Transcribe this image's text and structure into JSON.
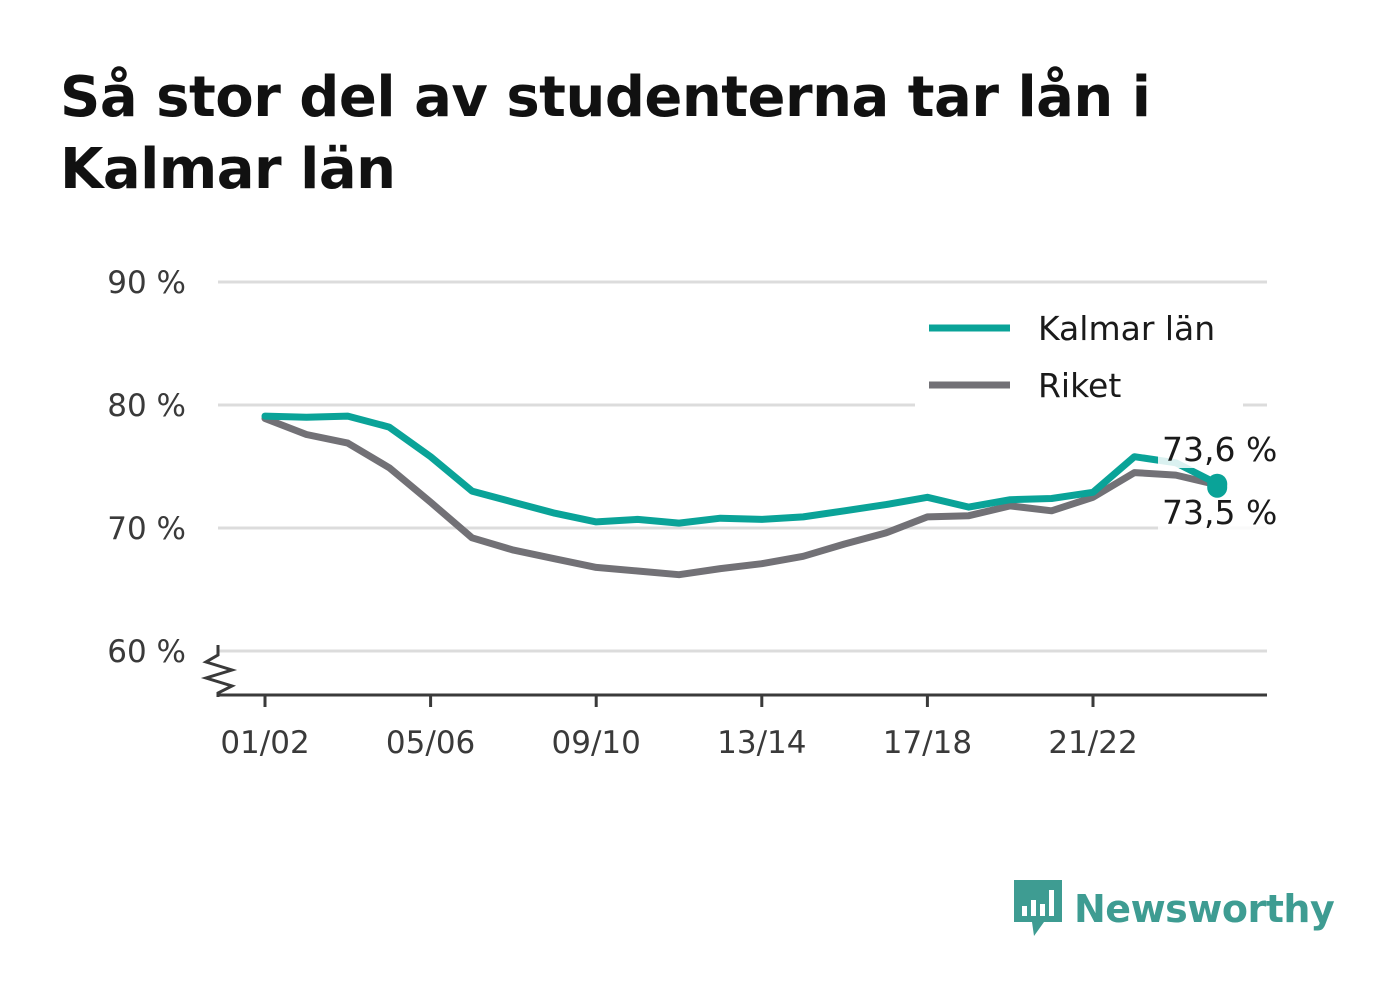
{
  "title": "Så stor del av studenterna tar lån i Kalmar län",
  "brand": {
    "name": "Newsworthy",
    "icon": "bar-chart-speech-bubble-icon",
    "color": "#3e9c92"
  },
  "colors": {
    "kalmar": "#0aa398",
    "riket": "#727176",
    "grid": "#dcdcdc",
    "axis": "#3a3a3a"
  },
  "chart_data": {
    "type": "line",
    "title": "Så stor del av studenterna tar lån i Kalmar län",
    "xlabel": "",
    "ylabel": "",
    "x": [
      "01/02",
      "02/03",
      "03/04",
      "04/05",
      "05/06",
      "06/07",
      "07/08",
      "08/09",
      "09/10",
      "10/11",
      "11/12",
      "12/13",
      "13/14",
      "14/15",
      "15/16",
      "16/17",
      "17/18",
      "18/19",
      "19/20",
      "20/21",
      "21/22",
      "22/23",
      "23/24",
      "24/25"
    ],
    "x_tick_labels": [
      "01/02",
      "05/06",
      "09/10",
      "13/14",
      "17/18",
      "21/22"
    ],
    "y_ticks": [
      60,
      70,
      80,
      90
    ],
    "y_tick_labels": [
      "60 %",
      "70 %",
      "80 %",
      "90 %"
    ],
    "ylim": [
      56.5,
      90
    ],
    "y_axis_break": true,
    "grid": true,
    "legend_position": "top-right",
    "series": [
      {
        "name": "Kalmar län",
        "color": "#0aa398",
        "values": [
          79.1,
          79.0,
          79.1,
          78.2,
          75.8,
          73.0,
          72.1,
          71.2,
          70.5,
          70.7,
          70.4,
          70.8,
          70.7,
          70.9,
          71.4,
          71.9,
          72.5,
          71.7,
          72.3,
          72.4,
          72.9,
          75.8,
          75.3,
          73.6
        ],
        "end_label": "73,6 %"
      },
      {
        "name": "Riket",
        "color": "#727176",
        "values": [
          78.9,
          77.6,
          76.9,
          74.9,
          72.1,
          69.2,
          68.2,
          67.5,
          66.8,
          66.5,
          66.2,
          66.7,
          67.1,
          67.7,
          68.7,
          69.6,
          70.9,
          71.0,
          71.8,
          71.4,
          72.5,
          74.5,
          74.3,
          73.5
        ],
        "end_label": "73,5 %"
      }
    ]
  }
}
